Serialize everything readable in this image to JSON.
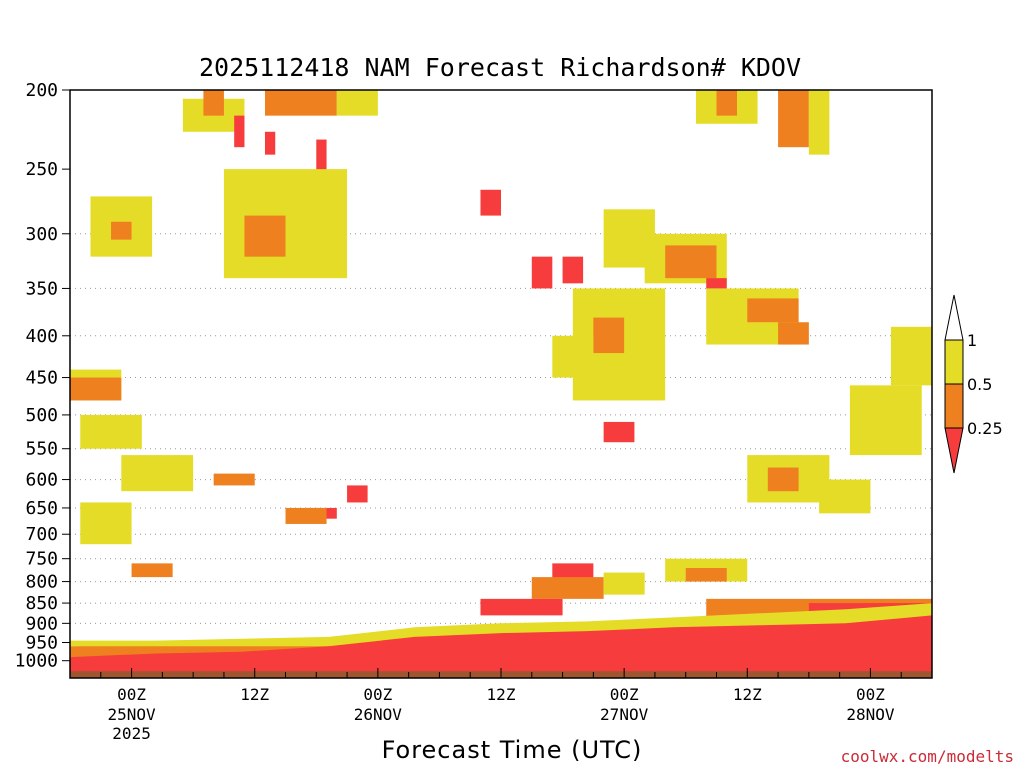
{
  "chart_data": {
    "type": "heatmap",
    "title": "2025112418 NAM Forecast Richardson# KDOV",
    "xlabel": "Forecast Time (UTC)",
    "ylabel": "",
    "credit": "coolwx.com/modelts",
    "x_ticks": [
      {
        "hour": 6,
        "label": "00Z",
        "sub": "25NOV",
        "sub2": "2025"
      },
      {
        "hour": 18,
        "label": "12Z",
        "sub": "",
        "sub2": ""
      },
      {
        "hour": 30,
        "label": "00Z",
        "sub": "26NOV",
        "sub2": ""
      },
      {
        "hour": 42,
        "label": "12Z",
        "sub": "",
        "sub2": ""
      },
      {
        "hour": 54,
        "label": "00Z",
        "sub": "27NOV",
        "sub2": ""
      },
      {
        "hour": 66,
        "label": "12Z",
        "sub": "",
        "sub2": ""
      },
      {
        "hour": 78,
        "label": "00Z",
        "sub": "28NOV",
        "sub2": ""
      }
    ],
    "xlim": [
      0,
      84
    ],
    "y_axis": "pressure (log scale, inverted)",
    "ylim": [
      1050,
      200
    ],
    "y_ticks": [
      200,
      250,
      300,
      350,
      400,
      450,
      500,
      550,
      600,
      650,
      700,
      750,
      800,
      850,
      900,
      950,
      1000
    ],
    "gridlines_dotted": [
      300,
      350,
      400,
      450,
      500,
      550,
      600,
      650,
      700,
      750,
      800,
      850,
      900,
      950
    ],
    "colorbar": {
      "ticks": [
        "1",
        "0.5",
        "0.25"
      ],
      "bins": [
        {
          "range": "> 1",
          "color": "#ffffff"
        },
        {
          "range": "0.5 – 1",
          "color": "#e5dc28"
        },
        {
          "range": "0.25 – 0.5",
          "color": "#ee8020"
        },
        {
          "range": "< 0.25",
          "color": "#f63c3c"
        }
      ]
    },
    "colors": {
      "yellow": "#e5dc28",
      "orange": "#ee8020",
      "red": "#f63c3c",
      "ground": "#9e5530"
    },
    "regions": [
      {
        "bin": "yellow",
        "x": [
          11,
          17
        ],
        "p": [
          205,
          225
        ]
      },
      {
        "bin": "orange",
        "x": [
          13,
          15
        ],
        "p": [
          200,
          215
        ]
      },
      {
        "bin": "orange",
        "x": [
          19,
          26
        ],
        "p": [
          200,
          215
        ]
      },
      {
        "bin": "yellow",
        "x": [
          26,
          30
        ],
        "p": [
          200,
          215
        ]
      },
      {
        "bin": "red",
        "x": [
          16,
          17
        ],
        "p": [
          215,
          235
        ]
      },
      {
        "bin": "red",
        "x": [
          19,
          20
        ],
        "p": [
          225,
          240
        ]
      },
      {
        "bin": "red",
        "x": [
          24,
          25
        ],
        "p": [
          230,
          265
        ]
      },
      {
        "bin": "red",
        "x": [
          21,
          26
        ],
        "p": [
          270,
          290
        ]
      },
      {
        "bin": "yellow",
        "x": [
          2,
          8
        ],
        "p": [
          270,
          320
        ]
      },
      {
        "bin": "orange",
        "x": [
          4,
          6
        ],
        "p": [
          290,
          305
        ]
      },
      {
        "bin": "yellow",
        "x": [
          15,
          27
        ],
        "p": [
          250,
          340
        ]
      },
      {
        "bin": "orange",
        "x": [
          17,
          21
        ],
        "p": [
          285,
          320
        ]
      },
      {
        "bin": "red",
        "x": [
          40,
          42
        ],
        "p": [
          265,
          285
        ]
      },
      {
        "bin": "yellow",
        "x": [
          52,
          57
        ],
        "p": [
          280,
          330
        ]
      },
      {
        "bin": "yellow",
        "x": [
          56,
          64
        ],
        "p": [
          300,
          345
        ]
      },
      {
        "bin": "orange",
        "x": [
          58,
          63
        ],
        "p": [
          310,
          340
        ]
      },
      {
        "bin": "red",
        "x": [
          62,
          64
        ],
        "p": [
          340,
          350
        ]
      },
      {
        "bin": "yellow",
        "x": [
          62,
          71
        ],
        "p": [
          350,
          410
        ]
      },
      {
        "bin": "orange",
        "x": [
          66,
          71
        ],
        "p": [
          360,
          385
        ]
      },
      {
        "bin": "orange",
        "x": [
          69,
          72
        ],
        "p": [
          385,
          410
        ]
      },
      {
        "bin": "yellow",
        "x": [
          61,
          67
        ],
        "p": [
          200,
          220
        ]
      },
      {
        "bin": "orange",
        "x": [
          63,
          65
        ],
        "p": [
          200,
          215
        ]
      },
      {
        "bin": "orange",
        "x": [
          69,
          72
        ],
        "p": [
          200,
          235
        ]
      },
      {
        "bin": "yellow",
        "x": [
          72,
          74
        ],
        "p": [
          200,
          240
        ]
      },
      {
        "bin": "yellow",
        "x": [
          49,
          58
        ],
        "p": [
          350,
          480
        ]
      },
      {
        "bin": "orange",
        "x": [
          51,
          54
        ],
        "p": [
          380,
          420
        ]
      },
      {
        "bin": "red",
        "x": [
          52,
          55
        ],
        "p": [
          510,
          540
        ]
      },
      {
        "bin": "yellow",
        "x": [
          47,
          51
        ],
        "p": [
          400,
          450
        ]
      },
      {
        "bin": "red",
        "x": [
          48,
          50
        ],
        "p": [
          320,
          345
        ]
      },
      {
        "bin": "red",
        "x": [
          45,
          47
        ],
        "p": [
          320,
          350
        ]
      },
      {
        "bin": "yellow",
        "x": [
          0,
          5
        ],
        "p": [
          440,
          480
        ]
      },
      {
        "bin": "orange",
        "x": [
          0,
          5
        ],
        "p": [
          450,
          480
        ]
      },
      {
        "bin": "yellow",
        "x": [
          1,
          7
        ],
        "p": [
          500,
          550
        ]
      },
      {
        "bin": "yellow",
        "x": [
          5,
          12
        ],
        "p": [
          560,
          620
        ]
      },
      {
        "bin": "orange",
        "x": [
          14,
          18
        ],
        "p": [
          590,
          610
        ]
      },
      {
        "bin": "yellow",
        "x": [
          1,
          6
        ],
        "p": [
          640,
          720
        ]
      },
      {
        "bin": "red",
        "x": [
          27,
          29
        ],
        "p": [
          610,
          640
        ]
      },
      {
        "bin": "red",
        "x": [
          23,
          26
        ],
        "p": [
          650,
          670
        ]
      },
      {
        "bin": "orange",
        "x": [
          21,
          25
        ],
        "p": [
          650,
          680
        ]
      },
      {
        "bin": "yellow",
        "x": [
          66,
          74
        ],
        "p": [
          560,
          640
        ]
      },
      {
        "bin": "orange",
        "x": [
          68,
          71
        ],
        "p": [
          580,
          620
        ]
      },
      {
        "bin": "yellow",
        "x": [
          73,
          78
        ],
        "p": [
          600,
          660
        ]
      },
      {
        "bin": "yellow",
        "x": [
          76,
          83
        ],
        "p": [
          460,
          560
        ]
      },
      {
        "bin": "yellow",
        "x": [
          80,
          84
        ],
        "p": [
          390,
          460
        ]
      },
      {
        "bin": "yellow",
        "x": [
          58,
          66
        ],
        "p": [
          750,
          800
        ]
      },
      {
        "bin": "orange",
        "x": [
          60,
          64
        ],
        "p": [
          770,
          800
        ]
      },
      {
        "bin": "red",
        "x": [
          47,
          51
        ],
        "p": [
          760,
          830
        ]
      },
      {
        "bin": "orange",
        "x": [
          45,
          52
        ],
        "p": [
          790,
          840
        ]
      },
      {
        "bin": "yellow",
        "x": [
          52,
          56
        ],
        "p": [
          780,
          830
        ]
      },
      {
        "bin": "red",
        "x": [
          40,
          48
        ],
        "p": [
          840,
          880
        ]
      },
      {
        "bin": "orange",
        "x": [
          62,
          84
        ],
        "p": [
          840,
          900
        ]
      },
      {
        "bin": "red",
        "x": [
          72,
          84
        ],
        "p": [
          850,
          885
        ]
      },
      {
        "bin": "orange",
        "x": [
          6,
          10
        ],
        "p": [
          760,
          790
        ]
      }
    ],
    "low_level_bands": [
      {
        "bin": "red",
        "x": [
          0,
          84
        ],
        "p_top": [
          990,
          980,
          975,
          960,
          935,
          925,
          920,
          910,
          905,
          900,
          880
        ],
        "p_bottom": 1040
      },
      {
        "bin": "orange",
        "x": [
          0,
          84
        ],
        "p_top": [
          960,
          955,
          950,
          945,
          920,
          910,
          905,
          900,
          890,
          880,
          860
        ],
        "p_bottom": 990
      },
      {
        "bin": "yellow",
        "x": [
          0,
          84
        ],
        "p_top": [
          945,
          945,
          940,
          935,
          910,
          900,
          895,
          885,
          875,
          865,
          850
        ],
        "p_bottom": 960
      }
    ],
    "ground": {
      "bin": "ground",
      "p": [
        1030,
        1050
      ]
    }
  }
}
